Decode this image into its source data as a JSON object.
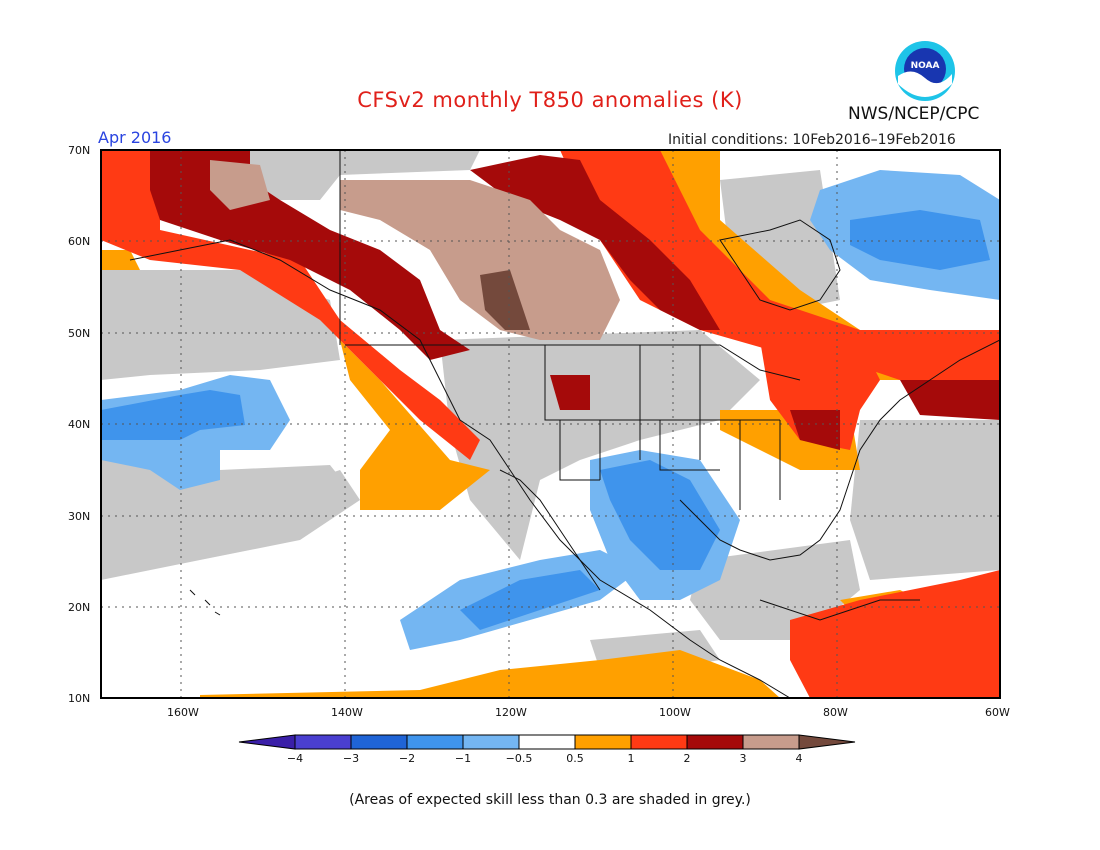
{
  "header": {
    "title": "CFSv2 monthly T850 anomalies (K)",
    "agency": "NWS/NCEP/CPC",
    "month": "Apr 2016",
    "initial_conditions": "Initial conditions: 10Feb2016–19Feb2016",
    "logo_text": "NOAA"
  },
  "map": {
    "lat_labels": [
      "70N",
      "60N",
      "50N",
      "40N",
      "30N",
      "20N",
      "10N"
    ],
    "lon_labels": [
      "160W",
      "140W",
      "120W",
      "100W",
      "80W",
      "60W"
    ]
  },
  "colorbar": {
    "labels": [
      "−4",
      "−3",
      "−2",
      "−1",
      "−0.5",
      "0.5",
      "1",
      "2",
      "3",
      "4"
    ],
    "colors": [
      "#3a1fa8",
      "#4a3fd0",
      "#1f64d6",
      "#3f94ec",
      "#74b6f2",
      "#ffffff",
      "#ffa000",
      "#ff3a14",
      "#a50a0a",
      "#c79c8c",
      "#74493c"
    ]
  },
  "footnote": "(Areas of expected skill less than 0.3 are shaded in grey.)",
  "colors": {
    "grey_low_skill": "#c8c8c8",
    "white_neutral": "#ffffff"
  }
}
